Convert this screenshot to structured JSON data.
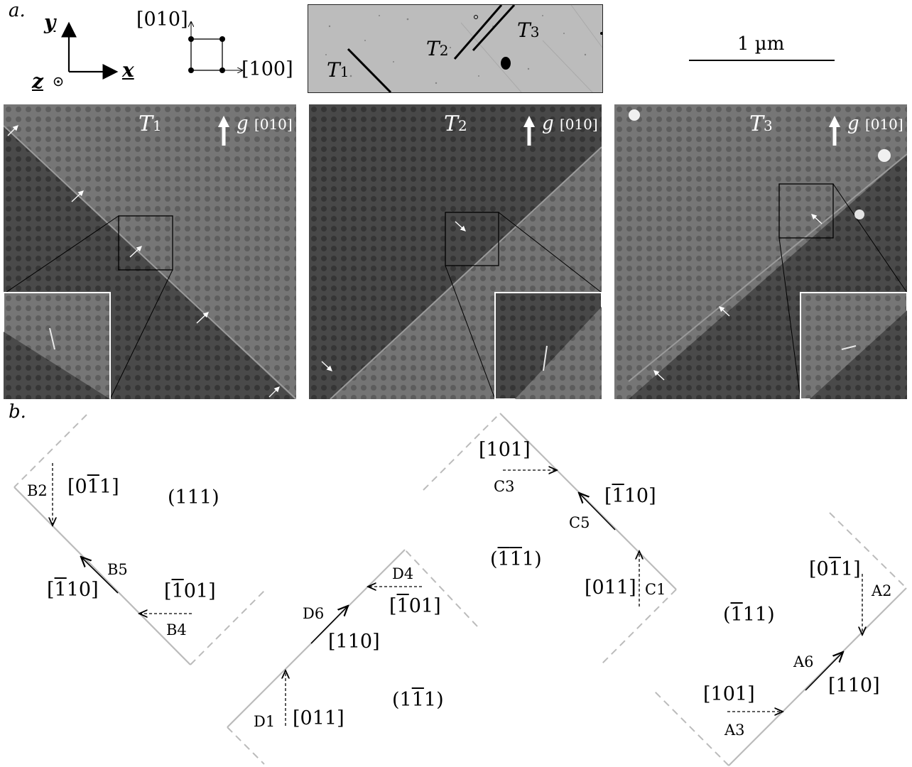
{
  "panel_a_label": "a.",
  "panel_b_label": "b.",
  "axes": {
    "y": "y",
    "x": "x",
    "z": "z"
  },
  "crystal": {
    "label_010": "[010]",
    "label_100": "[100]"
  },
  "overview": {
    "t1": {
      "main": "T",
      "sub": "1"
    },
    "t2": {
      "main": "T",
      "sub": "2"
    },
    "t3": {
      "main": "T",
      "sub": "3"
    }
  },
  "scale_bar": "1 µm",
  "micrographs": [
    {
      "twin_main": "T",
      "twin_sub": "1",
      "g_main": "g",
      "g_sub": "[010]"
    },
    {
      "twin_main": "T",
      "twin_sub": "2",
      "g_main": "g",
      "g_sub": "[010]"
    },
    {
      "twin_main": "T",
      "twin_sub": "3",
      "g_main": "g",
      "g_sub": "[010]"
    }
  ],
  "diagram_b": {
    "group_b": {
      "b2": "B2",
      "dir_b2_pre": "[0",
      "dir_b2_bar": "1",
      "dir_b2_post": "1]",
      "plane": "(111)",
      "b5": "B5",
      "dir_b5_pre": "[",
      "dir_b5_bar": "1",
      "dir_b5_post": "10]",
      "dir_b4_pre": "[",
      "dir_b4_bar": "1",
      "dir_b4_post": "01]",
      "b4": "B4"
    },
    "group_d": {
      "d4": "D4",
      "dir_d4_pre": "[",
      "dir_d4_bar": "1",
      "dir_d4_post": "01]",
      "d6": "D6",
      "dir_d6": "[110]",
      "d1": "D1",
      "dir_d1": "[011]",
      "plane_pre": "(1",
      "plane_bar": "1",
      "plane_post": "1)"
    },
    "group_c": {
      "dir_c3": "[101]",
      "c3": "C3",
      "dir_c5_pre": "[",
      "dir_c5_bar": "1",
      "dir_c5_post": "10]",
      "c5": "C5",
      "plane_pre": "(",
      "plane_bar1": "1",
      "plane_bar2": "1",
      "plane_post": "1)",
      "dir_c1": "[011]",
      "c1": "C1"
    },
    "group_a": {
      "dir_a2_pre": "[0",
      "dir_a2_bar": "1",
      "dir_a2_post": "1]",
      "a2": "A2",
      "plane_pre": "(",
      "plane_bar": "1",
      "plane_post": "11)",
      "a6": "A6",
      "dir_a6": "[110]",
      "dir_a3": "[101]",
      "a3": "A3"
    }
  }
}
